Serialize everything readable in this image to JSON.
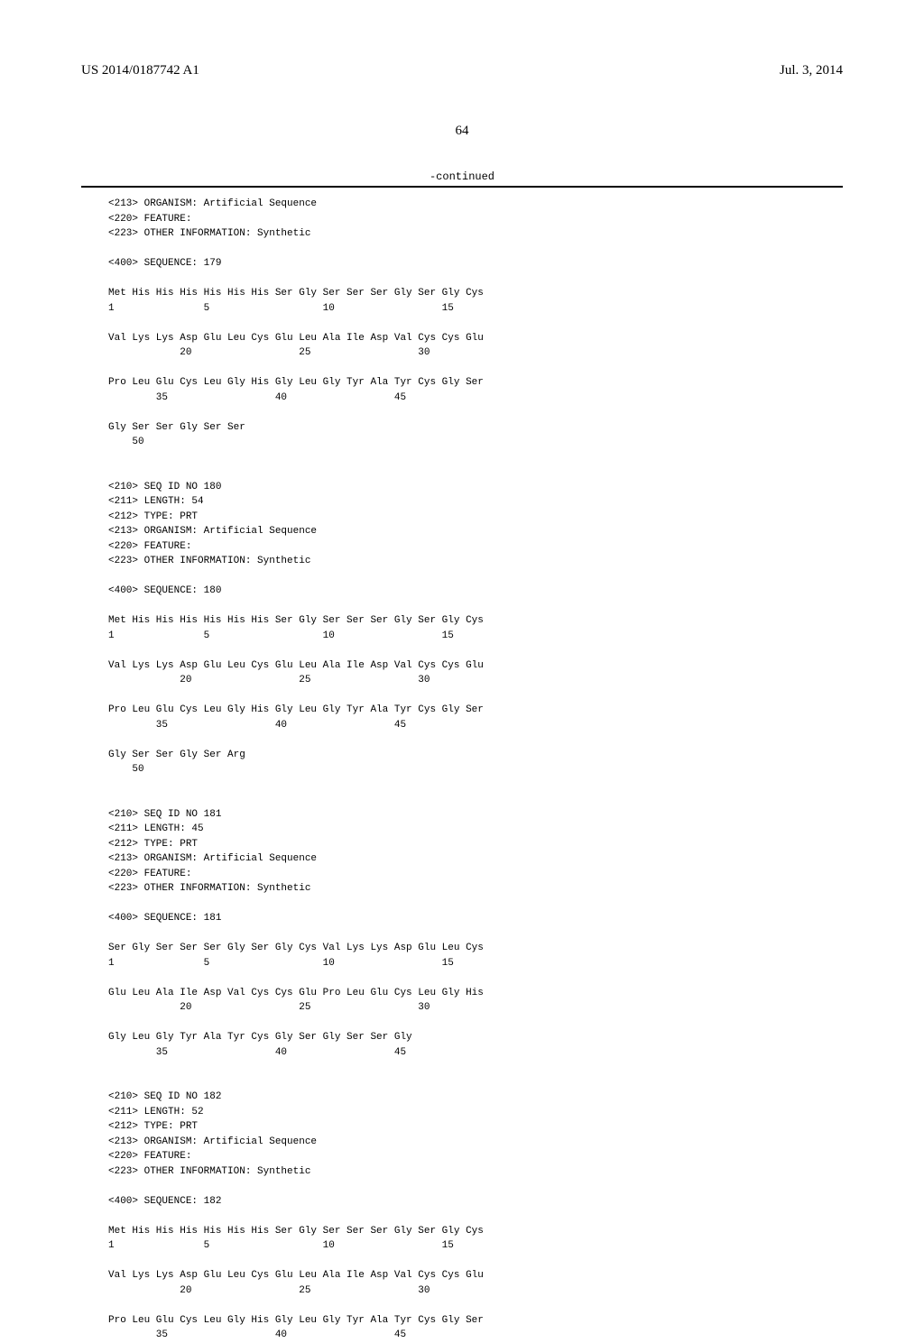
{
  "header": {
    "pub_number": "US 2014/0187742 A1",
    "pub_date": "Jul. 3, 2014"
  },
  "page_number": "64",
  "continued_label": "-continued",
  "sequences": {
    "seq179": {
      "meta_organism": "<213> ORGANISM: Artificial Sequence",
      "meta_feature": "<220> FEATURE:",
      "meta_other": "<223> OTHER INFORMATION: Synthetic",
      "seq_header": "<400> SEQUENCE: 179",
      "row1_aa": "Met His His His His His His Ser Gly Ser Ser Ser Gly Ser Gly Cys",
      "row1_num": "1               5                   10                  15",
      "row2_aa": "Val Lys Lys Asp Glu Leu Cys Glu Leu Ala Ile Asp Val Cys Cys Glu",
      "row2_num": "            20                  25                  30",
      "row3_aa": "Pro Leu Glu Cys Leu Gly His Gly Leu Gly Tyr Ala Tyr Cys Gly Ser",
      "row3_num": "        35                  40                  45",
      "row4_aa": "Gly Ser Ser Gly Ser Ser",
      "row4_num": "    50"
    },
    "seq180": {
      "meta_seqid": "<210> SEQ ID NO 180",
      "meta_length": "<211> LENGTH: 54",
      "meta_type": "<212> TYPE: PRT",
      "meta_organism": "<213> ORGANISM: Artificial Sequence",
      "meta_feature": "<220> FEATURE:",
      "meta_other": "<223> OTHER INFORMATION: Synthetic",
      "seq_header": "<400> SEQUENCE: 180",
      "row1_aa": "Met His His His His His His Ser Gly Ser Ser Ser Gly Ser Gly Cys",
      "row1_num": "1               5                   10                  15",
      "row2_aa": "Val Lys Lys Asp Glu Leu Cys Glu Leu Ala Ile Asp Val Cys Cys Glu",
      "row2_num": "            20                  25                  30",
      "row3_aa": "Pro Leu Glu Cys Leu Gly His Gly Leu Gly Tyr Ala Tyr Cys Gly Ser",
      "row3_num": "        35                  40                  45",
      "row4_aa": "Gly Ser Ser Gly Ser Arg",
      "row4_num": "    50"
    },
    "seq181": {
      "meta_seqid": "<210> SEQ ID NO 181",
      "meta_length": "<211> LENGTH: 45",
      "meta_type": "<212> TYPE: PRT",
      "meta_organism": "<213> ORGANISM: Artificial Sequence",
      "meta_feature": "<220> FEATURE:",
      "meta_other": "<223> OTHER INFORMATION: Synthetic",
      "seq_header": "<400> SEQUENCE: 181",
      "row1_aa": "Ser Gly Ser Ser Ser Gly Ser Gly Cys Val Lys Lys Asp Glu Leu Cys",
      "row1_num": "1               5                   10                  15",
      "row2_aa": "Glu Leu Ala Ile Asp Val Cys Cys Glu Pro Leu Glu Cys Leu Gly His",
      "row2_num": "            20                  25                  30",
      "row3_aa": "Gly Leu Gly Tyr Ala Tyr Cys Gly Ser Gly Ser Ser Gly",
      "row3_num": "        35                  40                  45"
    },
    "seq182": {
      "meta_seqid": "<210> SEQ ID NO 182",
      "meta_length": "<211> LENGTH: 52",
      "meta_type": "<212> TYPE: PRT",
      "meta_organism": "<213> ORGANISM: Artificial Sequence",
      "meta_feature": "<220> FEATURE:",
      "meta_other": "<223> OTHER INFORMATION: Synthetic",
      "seq_header": "<400> SEQUENCE: 182",
      "row1_aa": "Met His His His His His His Ser Gly Ser Ser Ser Gly Ser Gly Cys",
      "row1_num": "1               5                   10                  15",
      "row2_aa": "Val Lys Lys Asp Glu Leu Cys Glu Leu Ala Ile Asp Val Cys Cys Glu",
      "row2_num": "            20                  25                  30",
      "row3_aa": "Pro Leu Glu Cys Leu Gly His Gly Leu Gly Tyr Ala Tyr Cys Gly Ser",
      "row3_num": "        35                  40                  45"
    }
  }
}
